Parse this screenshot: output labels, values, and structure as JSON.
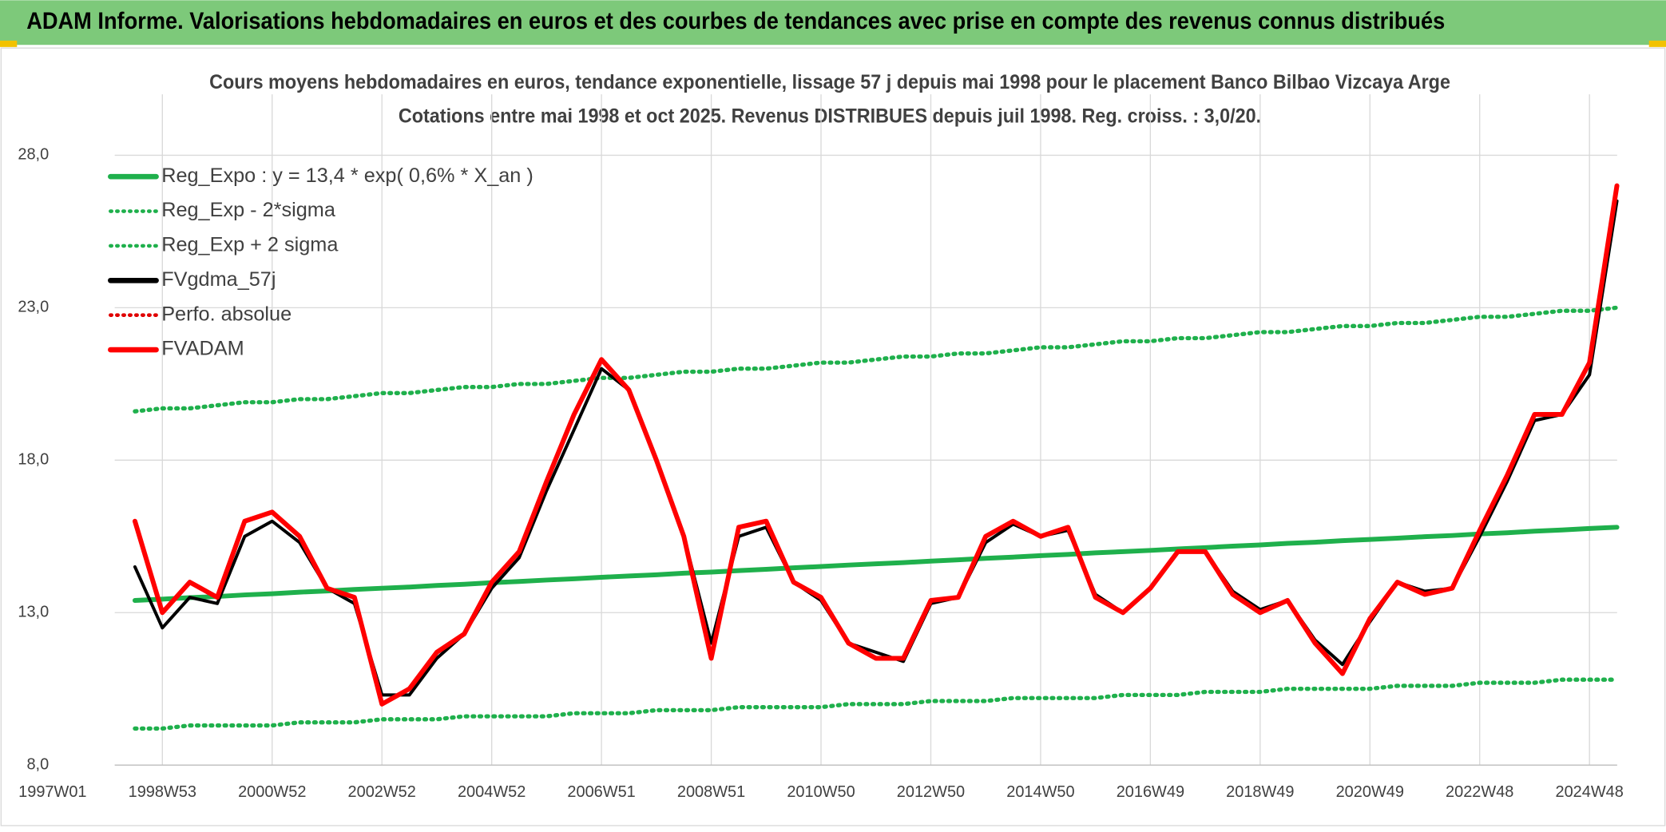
{
  "header": {
    "title": "ADAM Informe. Valorisations hebdomadaires en euros et des courbes de tendances avec prise en compte des revenus connus distribués"
  },
  "chart_data": {
    "type": "line",
    "title": "Cours moyens hebdomadaires en euros, tendance exponentielle, lissage 57 j depuis mai 1998 pour le placement Banco Bilbao Vizcaya Arge",
    "subtitle": "Cotations entre mai 1998 et oct 2025. Revenus DISTRIBUES depuis juil 1998. Reg. croiss. : 3,0/20.",
    "categories": [
      "1997W01",
      null,
      null,
      null,
      "1998W53",
      null,
      null,
      null,
      "2000W52",
      null,
      null,
      null,
      "2002W52",
      null,
      null,
      null,
      "2004W52",
      null,
      null,
      null,
      "2006W51",
      null,
      null,
      null,
      "2008W51",
      null,
      null,
      null,
      "2010W50",
      null,
      null,
      null,
      "2012W50",
      null,
      null,
      null,
      "2014W50",
      null,
      null,
      null,
      "2016W49",
      null,
      null,
      null,
      "2018W49",
      null,
      null,
      null,
      "2020W49",
      null,
      null,
      null,
      "2022W48",
      null,
      null,
      null,
      "2024W48",
      null
    ],
    "ylim": [
      8,
      30
    ],
    "yticks": [
      {
        "value": 8,
        "label": "8,0"
      },
      {
        "value": 13,
        "label": "13,0"
      },
      {
        "value": 18,
        "label": "18,0"
      },
      {
        "value": 23,
        "label": "23,0"
      },
      {
        "value": 28,
        "label": "28,0"
      }
    ],
    "grid": true,
    "legend": "upper left",
    "series": [
      {
        "name": "Reg_Expo : y = 13,4 * exp( 0,6% *  X_an )",
        "color": "#1fb04c",
        "style": "solid",
        "values": [
          null,
          null,
          null,
          13.4,
          13.44,
          13.49,
          13.53,
          13.58,
          13.62,
          13.67,
          13.71,
          13.76,
          13.8,
          13.84,
          13.89,
          13.93,
          13.98,
          14.02,
          14.07,
          14.11,
          14.16,
          14.2,
          14.24,
          14.29,
          14.33,
          14.38,
          14.42,
          14.47,
          14.51,
          14.56,
          14.6,
          14.64,
          14.69,
          14.73,
          14.78,
          14.82,
          14.87,
          14.91,
          14.96,
          15.0,
          15.04,
          15.09,
          15.13,
          15.18,
          15.22,
          15.27,
          15.31,
          15.36,
          15.4,
          15.44,
          15.49,
          15.53,
          15.58,
          15.62,
          15.67,
          15.71,
          15.76,
          15.8
        ]
      },
      {
        "name": "Reg_Exp - 2*sigma",
        "color": "#1fb04c",
        "style": "dotted",
        "values": [
          null,
          null,
          null,
          9.2,
          9.2,
          9.3,
          9.3,
          9.3,
          9.3,
          9.4,
          9.4,
          9.4,
          9.5,
          9.5,
          9.5,
          9.6,
          9.6,
          9.6,
          9.6,
          9.7,
          9.7,
          9.7,
          9.8,
          9.8,
          9.8,
          9.9,
          9.9,
          9.9,
          9.9,
          10.0,
          10.0,
          10.0,
          10.1,
          10.1,
          10.1,
          10.2,
          10.2,
          10.2,
          10.2,
          10.3,
          10.3,
          10.3,
          10.4,
          10.4,
          10.4,
          10.5,
          10.5,
          10.5,
          10.5,
          10.6,
          10.6,
          10.6,
          10.7,
          10.7,
          10.7,
          10.8,
          10.8,
          10.8
        ]
      },
      {
        "name": "Reg_Exp + 2 sigma",
        "color": "#1fb04c",
        "style": "dotted",
        "values": [
          null,
          null,
          null,
          19.6,
          19.7,
          19.7,
          19.8,
          19.9,
          19.9,
          20.0,
          20.0,
          20.1,
          20.2,
          20.2,
          20.3,
          20.4,
          20.4,
          20.5,
          20.5,
          20.6,
          20.7,
          20.7,
          20.8,
          20.9,
          20.9,
          21.0,
          21.0,
          21.1,
          21.2,
          21.2,
          21.3,
          21.4,
          21.4,
          21.5,
          21.5,
          21.6,
          21.7,
          21.7,
          21.8,
          21.9,
          21.9,
          22.0,
          22.0,
          22.1,
          22.2,
          22.2,
          22.3,
          22.4,
          22.4,
          22.5,
          22.5,
          22.6,
          22.7,
          22.7,
          22.8,
          22.9,
          22.9,
          23.0
        ]
      },
      {
        "name": "FVgdma_57j",
        "color": "#000000",
        "style": "solid",
        "values": [
          null,
          null,
          null,
          14.5,
          12.5,
          13.5,
          13.3,
          15.5,
          16,
          15.3,
          13.8,
          13.3,
          10.3,
          10.3,
          11.5,
          12.3,
          13.8,
          14.8,
          17,
          19,
          21,
          20.3,
          18,
          15.5,
          12,
          15.5,
          15.8,
          14,
          13.4,
          12,
          11.7,
          11.4,
          13.3,
          13.5,
          15.3,
          15.9,
          15.5,
          15.7,
          13.6,
          13,
          13.8,
          15,
          15,
          13.7,
          13.1,
          13.4,
          12.1,
          11.3,
          12.7,
          14,
          13.7,
          13.8,
          15.5,
          17.3,
          19.3,
          19.5,
          20.8,
          26.5
        ]
      },
      {
        "name": "Perfo. absolue",
        "color": "#e00000",
        "style": "dotted",
        "values": [
          null,
          null,
          null,
          null,
          null,
          null,
          null,
          null,
          null,
          null,
          null,
          null,
          null,
          null,
          null,
          null,
          null,
          null,
          null,
          null,
          null,
          null,
          null,
          null,
          null,
          null,
          null,
          null,
          null,
          null,
          null,
          null,
          null,
          null,
          null,
          null,
          null,
          null,
          null,
          null,
          null,
          null,
          null,
          null,
          null,
          null,
          null,
          null,
          null,
          null,
          null,
          null,
          null,
          null,
          null,
          null,
          null,
          null
        ]
      },
      {
        "name": "FVADAM",
        "color": "#ff0000",
        "style": "solid",
        "values": [
          null,
          null,
          null,
          16,
          13,
          14,
          13.5,
          16,
          16.3,
          15.5,
          13.8,
          13.5,
          10,
          10.5,
          11.7,
          12.3,
          14,
          15,
          17.3,
          19.5,
          21.3,
          20.3,
          18,
          15.5,
          11.5,
          15.8,
          16,
          14,
          13.5,
          12,
          11.5,
          11.5,
          13.4,
          13.5,
          15.5,
          16,
          15.5,
          15.8,
          13.5,
          13,
          13.8,
          15,
          15,
          13.6,
          13,
          13.4,
          12,
          11,
          12.8,
          14,
          13.6,
          13.8,
          15.7,
          17.5,
          19.5,
          19.5,
          21.2,
          27
        ]
      }
    ]
  }
}
